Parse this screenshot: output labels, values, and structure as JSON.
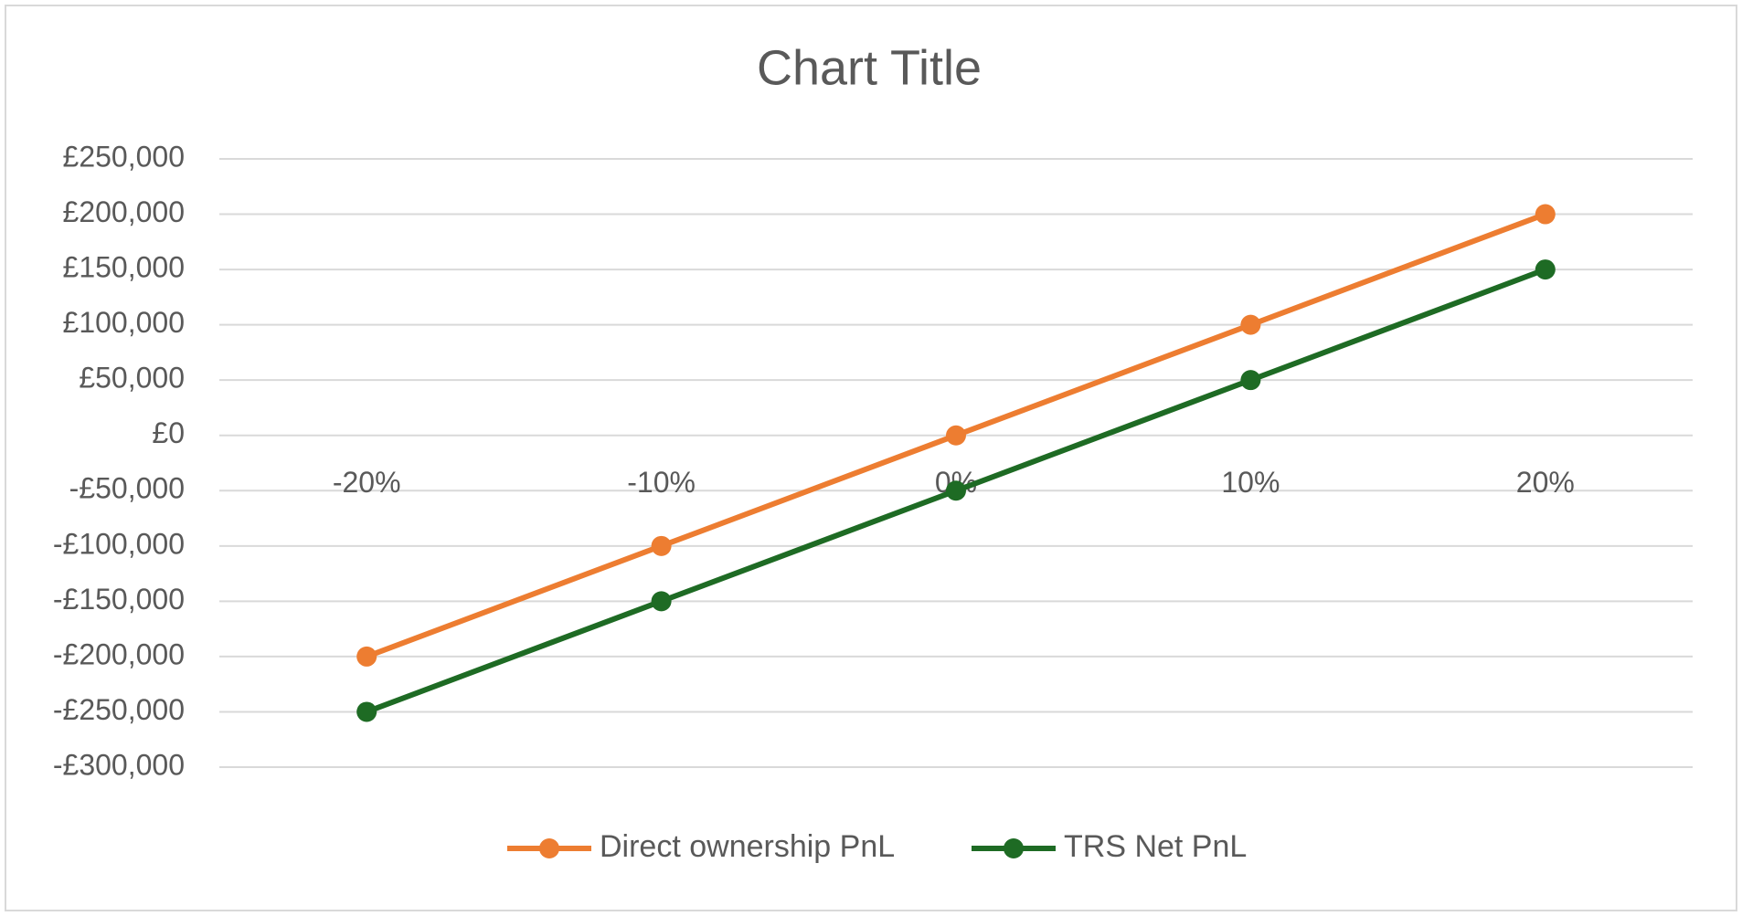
{
  "chart_data": {
    "type": "line",
    "title": "Chart Title",
    "categories": [
      "-20%",
      "-10%",
      "0%",
      "10%",
      "20%"
    ],
    "series": [
      {
        "name": "Direct ownership PnL",
        "color": "#ED7D31",
        "values": [
          -200000,
          -100000,
          0,
          100000,
          200000
        ]
      },
      {
        "name": "TRS Net PnL",
        "color": "#1E6B24",
        "values": [
          -250000,
          -150000,
          -50000,
          50000,
          150000
        ]
      }
    ],
    "ylim": [
      -300000,
      250000
    ],
    "yticks": [
      {
        "value": -300000,
        "label": "-£300,000"
      },
      {
        "value": -250000,
        "label": "-£250,000"
      },
      {
        "value": -200000,
        "label": "-£200,000"
      },
      {
        "value": -150000,
        "label": "-£150,000"
      },
      {
        "value": -100000,
        "label": "-£100,000"
      },
      {
        "value": -50000,
        "label": "-£50,000"
      },
      {
        "value": 0,
        "label": "£0"
      },
      {
        "value": 50000,
        "label": "£50,000"
      },
      {
        "value": 100000,
        "label": "£100,000"
      },
      {
        "value": 150000,
        "label": "£150,000"
      },
      {
        "value": 200000,
        "label": "£200,000"
      },
      {
        "value": 250000,
        "label": "£250,000"
      }
    ],
    "grid": true,
    "legend": "bottom"
  }
}
